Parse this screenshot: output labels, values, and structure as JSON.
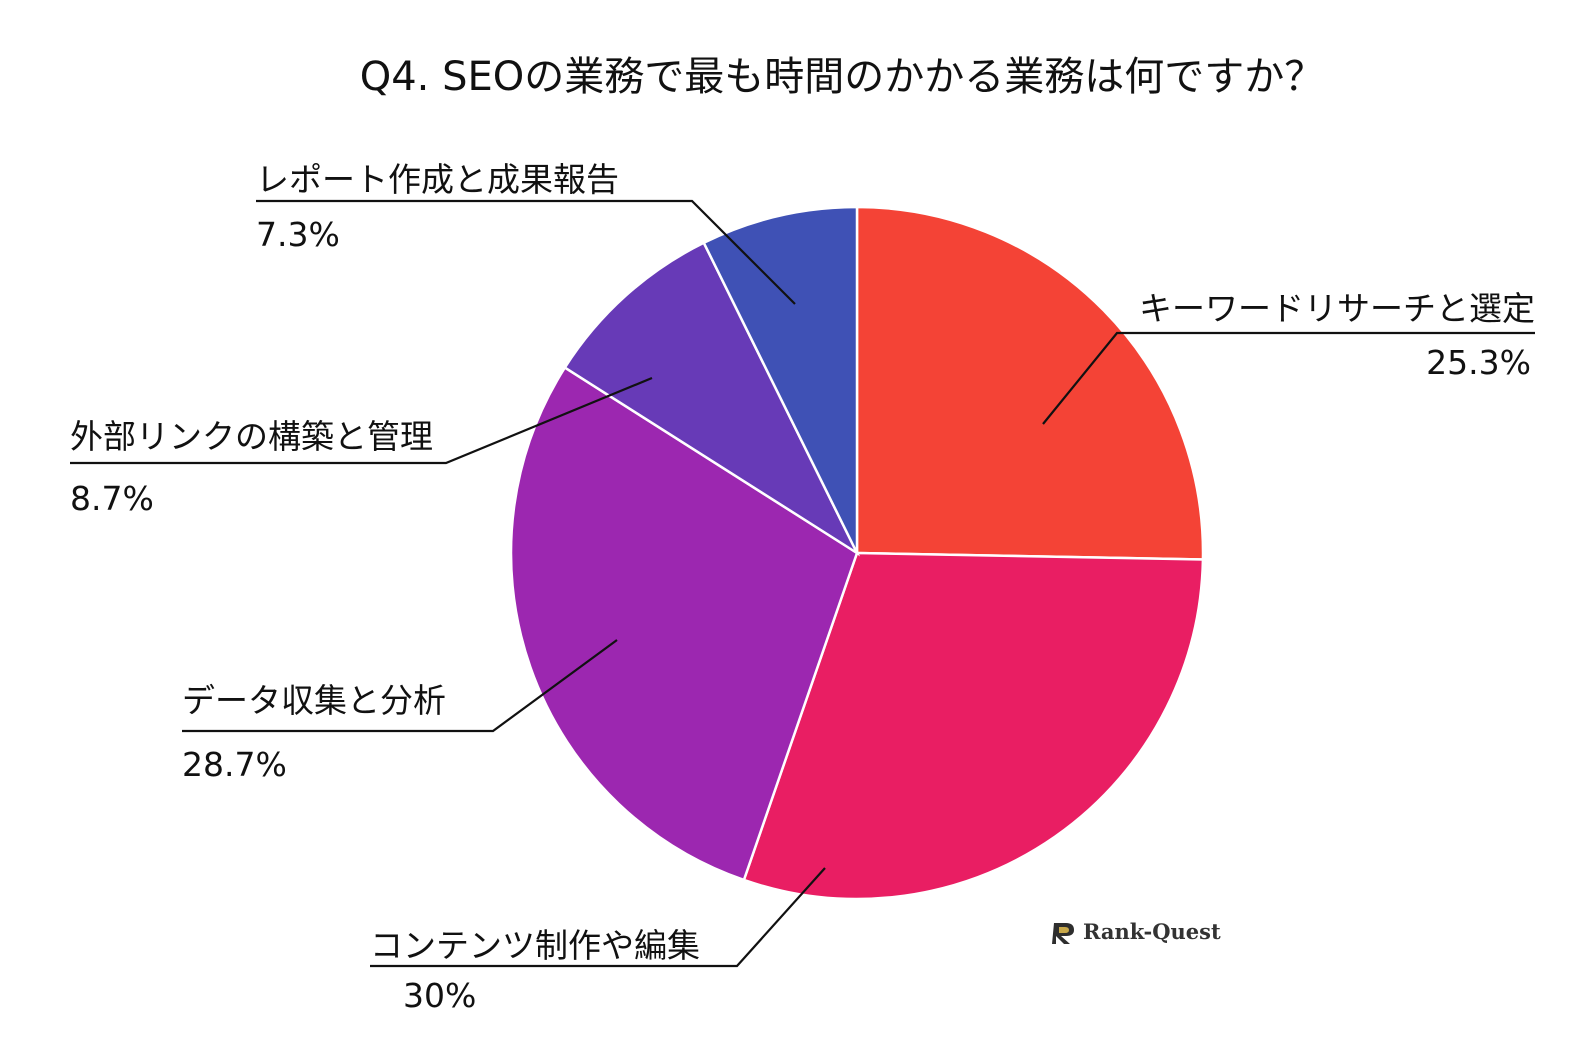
{
  "chart_data": {
    "type": "pie",
    "title": "Q4. SEOの業務で最も時間のかかる業務は何ですか？",
    "slices": [
      {
        "label": "キーワードリサーチと選定",
        "value": 25.3,
        "value_label": "25.3%",
        "color": "#F44336"
      },
      {
        "label": "コンテンツ制作や編集",
        "value": 30,
        "value_label": "30%",
        "color": "#E91E63"
      },
      {
        "label": "データ収集と分析",
        "value": 28.7,
        "value_label": "28.7%",
        "color": "#9C27B0"
      },
      {
        "label": "外部リンクの構築と管理",
        "value": 8.7,
        "value_label": "8.7%",
        "color": "#673AB7"
      },
      {
        "label": "レポート作成と成果報告",
        "value": 7.3,
        "value_label": "7.3%",
        "color": "#3F51B5"
      }
    ],
    "start": "12 o'clock",
    "direction": "clockwise",
    "legend": "none"
  },
  "watermark": {
    "text": "Rank-Quest"
  }
}
